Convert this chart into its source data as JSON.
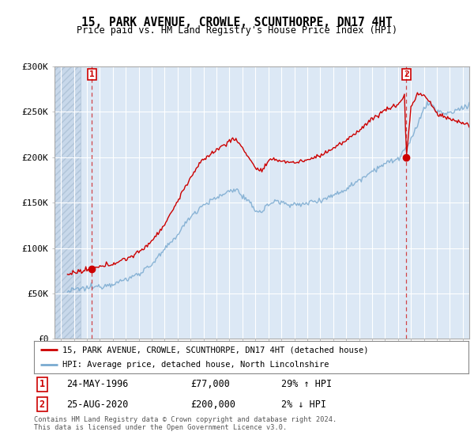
{
  "title": "15, PARK AVENUE, CROWLE, SCUNTHORPE, DN17 4HT",
  "subtitle": "Price paid vs. HM Land Registry's House Price Index (HPI)",
  "ylim": [
    0,
    300000
  ],
  "yticks": [
    0,
    50000,
    100000,
    150000,
    200000,
    250000,
    300000
  ],
  "ytick_labels": [
    "£0",
    "£50K",
    "£100K",
    "£150K",
    "£200K",
    "£250K",
    "£300K"
  ],
  "background_color": "#ffffff",
  "plot_bg_color": "#dce8f5",
  "grid_color": "#ffffff",
  "red_line_color": "#cc0000",
  "blue_line_color": "#7aaad0",
  "sale1_x": 1996.39,
  "sale1_y": 77000,
  "sale1_label": "1",
  "sale1_date": "24-MAY-1996",
  "sale1_price": "£77,000",
  "sale1_hpi": "29% ↑ HPI",
  "sale2_x": 2020.65,
  "sale2_y": 200000,
  "sale2_label": "2",
  "sale2_date": "25-AUG-2020",
  "sale2_price": "£200,000",
  "sale2_hpi": "2% ↓ HPI",
  "legend_line1": "15, PARK AVENUE, CROWLE, SCUNTHORPE, DN17 4HT (detached house)",
  "legend_line2": "HPI: Average price, detached house, North Lincolnshire",
  "footer1": "Contains HM Land Registry data © Crown copyright and database right 2024.",
  "footer2": "This data is licensed under the Open Government Licence v3.0.",
  "hatch_end_year": 1995.5,
  "xmin": 1993.5,
  "xmax": 2025.5,
  "xtick_start": 1994,
  "xtick_end": 2025
}
